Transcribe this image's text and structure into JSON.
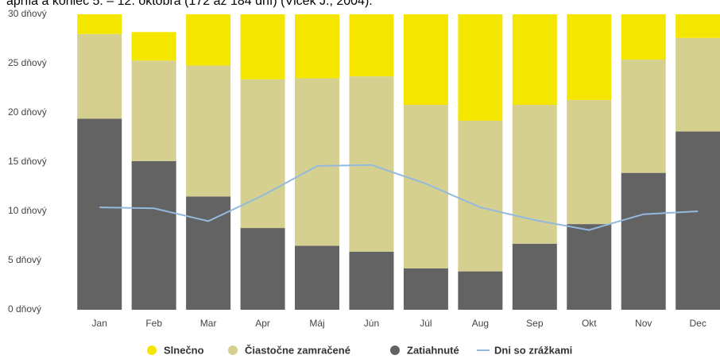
{
  "chart_data": {
    "type": "stacked_bar_line",
    "title": "apríla a koniec 5. – 12. októbra (172 až 184 dní) (Vlček J., 2004).",
    "categories": [
      "Jan",
      "Feb",
      "Mar",
      "Apr",
      "Máj",
      "Jún",
      "Júl",
      "Aug",
      "Sep",
      "Okt",
      "Nov",
      "Dec"
    ],
    "series": [
      {
        "name": "Slnečno",
        "color": "#f5e600",
        "kind": "bar",
        "values": [
          3.0,
          2.9,
          6.2,
          6.6,
          7.5,
          6.3,
          10.2,
          11.8,
          9.2,
          9.7,
          4.6,
          3.4
        ]
      },
      {
        "name": "Čiastočne zamračené",
        "color": "#d5d08f",
        "kind": "bar",
        "values": [
          8.6,
          10.2,
          13.3,
          15.1,
          17.0,
          17.8,
          16.6,
          15.3,
          14.1,
          12.6,
          11.5,
          9.5
        ]
      },
      {
        "name": "Zatiahnuté",
        "color": "#636363",
        "kind": "bar",
        "values": [
          19.4,
          15.1,
          11.5,
          8.3,
          6.5,
          5.9,
          4.2,
          3.9,
          6.7,
          8.7,
          13.9,
          18.1
        ]
      },
      {
        "name": "Dni so zrážkami",
        "color": "#94b9de",
        "kind": "line",
        "values": [
          10.4,
          10.3,
          9.0,
          11.6,
          14.6,
          14.7,
          12.8,
          10.4,
          9.1,
          8.1,
          9.7,
          10.0
        ]
      }
    ],
    "ylim": [
      0,
      30
    ],
    "yticks": [
      {
        "value": 0,
        "label": "0 dňový"
      },
      {
        "value": 5,
        "label": "5 dňový"
      },
      {
        "value": 10,
        "label": "10 dňový"
      },
      {
        "value": 15,
        "label": "15 dňový"
      },
      {
        "value": 20,
        "label": "20 dňový"
      },
      {
        "value": 25,
        "label": "25 dňový"
      },
      {
        "value": 30,
        "label": "30 dňový"
      }
    ],
    "legend": "bottom"
  }
}
